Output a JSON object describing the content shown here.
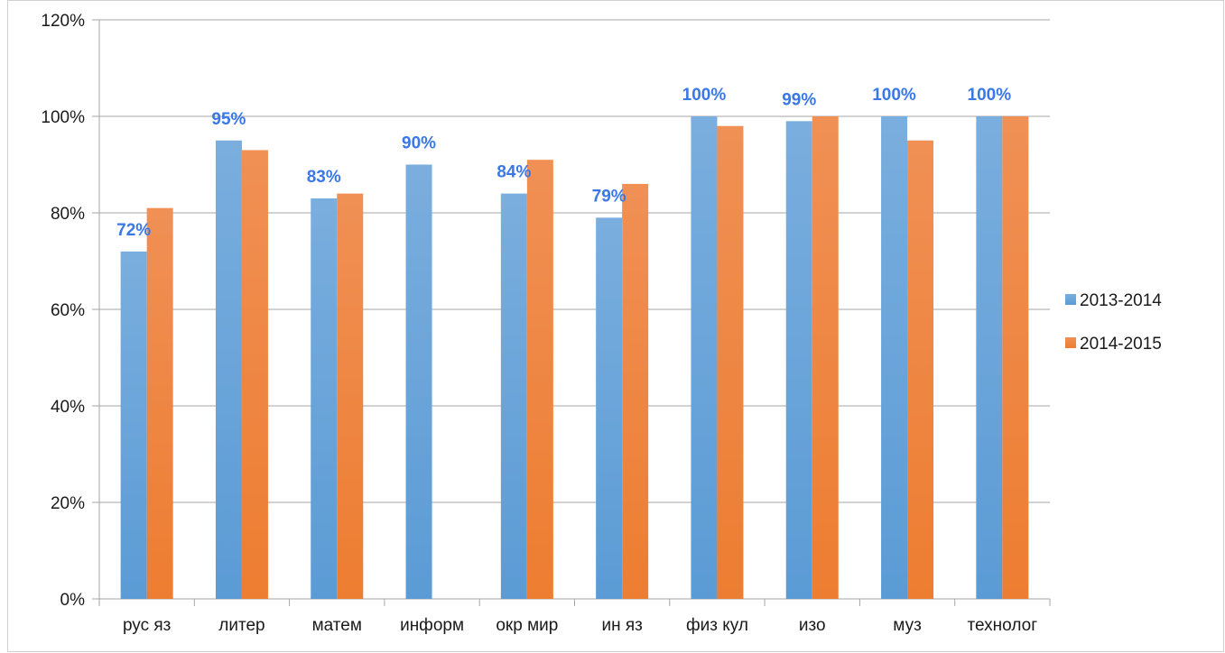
{
  "chart_data": {
    "type": "bar",
    "title": "",
    "xlabel": "",
    "ylabel": "",
    "ylim": [
      0,
      120
    ],
    "y_tick_step": 20,
    "y_tick_format": "percent",
    "grid": true,
    "legend_position": "right",
    "categories": [
      "рус яз",
      "литер",
      "матем",
      "информ",
      "окр мир",
      "ин яз",
      "физ кул",
      "изо",
      "муз",
      "технолог"
    ],
    "series": [
      {
        "name": "2013-2014",
        "color": "#5B9BD5",
        "color_light": "#7AAEDE",
        "values": [
          72,
          95,
          83,
          90,
          84,
          79,
          100,
          99,
          100,
          100
        ]
      },
      {
        "name": "2014-2015",
        "color": "#ED7D31",
        "color_light": "#F09055",
        "values": [
          81,
          93,
          84,
          null,
          91,
          86,
          98,
          100,
          95,
          100
        ]
      }
    ],
    "data_labels": {
      "series_index": 0,
      "color": "#3A78E8",
      "texts": [
        "72%",
        "95%",
        "83%",
        "90%",
        "84%",
        "79%",
        "100%",
        "99%",
        "100%",
        "100%"
      ]
    }
  }
}
